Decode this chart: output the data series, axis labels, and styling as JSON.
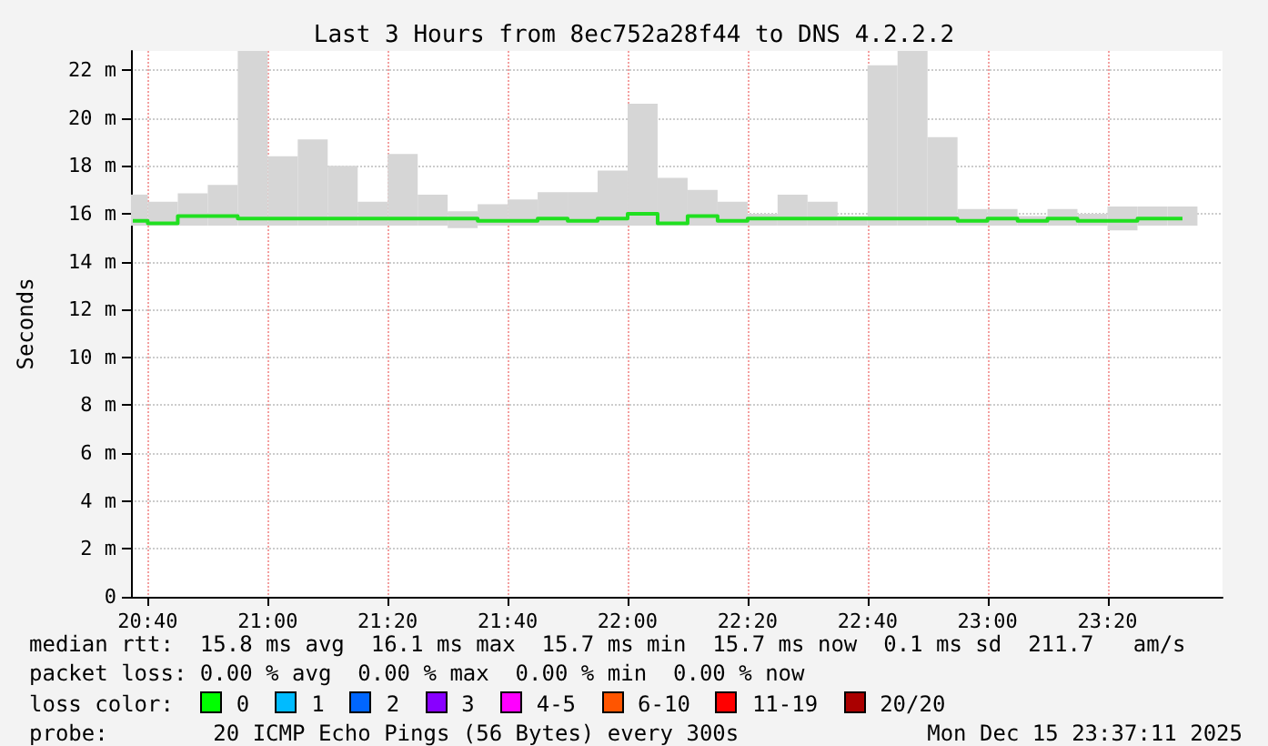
{
  "chart_data": {
    "type": "bar",
    "title": "Last 3 Hours from 8ec752a28f44 to DNS 4.2.2.2",
    "ylabel": "Seconds",
    "x": [
      20.625,
      20.7083,
      20.7917,
      20.875,
      20.9583,
      21.0417,
      21.125,
      21.2083,
      21.2917,
      21.375,
      21.4583,
      21.5417,
      21.625,
      21.7083,
      21.7917,
      21.875,
      21.9583,
      22.0417,
      22.125,
      22.2083,
      22.2917,
      22.375,
      22.4583,
      22.5417,
      22.625,
      22.7083,
      22.7917,
      22.875,
      22.9583,
      23.0417,
      23.125,
      23.2083,
      23.2917,
      23.375,
      23.4583,
      23.5417
    ],
    "series": [
      {
        "color": "#d6d6d6",
        "base": [
          15.5,
          15.5,
          15.5,
          15.5,
          15.5,
          15.5,
          15.5,
          15.5,
          15.5,
          15.5,
          15.5,
          15.4,
          15.5,
          15.5,
          15.5,
          15.5,
          15.5,
          15.5,
          15.5,
          15.5,
          15.5,
          15.5,
          15.5,
          15.5,
          15.5,
          15.5,
          15.5,
          15.5,
          15.5,
          15.5,
          15.5,
          15.5,
          15.5,
          15.3,
          15.5,
          15.5
        ],
        "values": [
          1.3,
          1.0,
          1.35,
          1.7,
          7.3,
          2.9,
          3.6,
          2.5,
          1.0,
          3.0,
          1.3,
          0.7,
          0.9,
          1.1,
          1.4,
          1.4,
          2.3,
          5.1,
          2.0,
          1.5,
          1.0,
          0.5,
          1.3,
          1.0,
          0.4,
          6.7,
          7.3,
          3.7,
          0.7,
          0.7,
          0.4,
          0.7,
          0.5,
          1.0,
          0.8,
          0.8
        ]
      },
      {
        "type": "step",
        "color": "#20e020",
        "values": [
          15.7,
          15.6,
          15.9,
          15.9,
          15.8,
          15.8,
          15.8,
          15.8,
          15.8,
          15.8,
          15.8,
          15.8,
          15.7,
          15.7,
          15.8,
          15.7,
          15.8,
          16.0,
          15.6,
          15.9,
          15.7,
          15.8,
          15.8,
          15.8,
          15.8,
          15.8,
          15.8,
          15.8,
          15.7,
          15.8,
          15.7,
          15.8,
          15.7,
          15.7,
          15.8,
          15.8
        ]
      }
    ],
    "xlim": [
      20.62,
      23.653
    ],
    "xticks": [
      {
        "value": 20.6667,
        "label": "20:40"
      },
      {
        "value": 21,
        "label": "21:00"
      },
      {
        "value": 21.3333,
        "label": "21:20"
      },
      {
        "value": 21.6667,
        "label": "21:40"
      },
      {
        "value": 22,
        "label": "22:00"
      },
      {
        "value": 22.3333,
        "label": "22:20"
      },
      {
        "value": 22.6667,
        "label": "22:40"
      },
      {
        "value": 23,
        "label": "23:00"
      },
      {
        "value": 23.3333,
        "label": "23:20"
      }
    ],
    "ylim": [
      0,
      22.8
    ],
    "yticks": [
      0,
      {
        "value": 2,
        "label": "2 m"
      },
      {
        "value": 4,
        "label": "4 m"
      },
      {
        "value": 6,
        "label": "6 m"
      },
      {
        "value": 8,
        "label": "8 m"
      },
      {
        "value": 10,
        "label": "10 m"
      },
      {
        "value": 12,
        "label": "12 m"
      },
      {
        "value": 14,
        "label": "14 m"
      },
      {
        "value": 16,
        "label": "16 m"
      },
      {
        "value": 18,
        "label": "18 m"
      },
      {
        "value": 20,
        "label": "20 m"
      },
      {
        "value": 22,
        "label": "22 m"
      }
    ],
    "grid": true,
    "annotations": [
      "median rtt:  15.8 ms avg  16.1 ms max  15.7 ms min  15.7 ms now  0.1 ms sd  211.7   am/s",
      "packet loss: 0.00 % avg  0.00 % max  0.00 % min  0.00 % now",
      "loss color:",
      "0",
      "1",
      "2",
      "3",
      "4-5",
      "6-10",
      "11-19",
      "20/20",
      "probe:        20 ICMP Echo Pings (56 Bytes) every 300s",
      "Mon Dec 15 23:37:11 2025"
    ]
  }
}
